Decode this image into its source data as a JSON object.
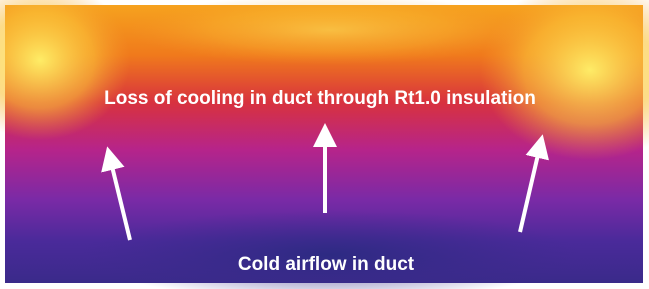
{
  "image": {
    "caption_top": "Loss of cooling in duct through Rt1.0 insulation",
    "caption_bottom": "Cold airflow in duct"
  }
}
